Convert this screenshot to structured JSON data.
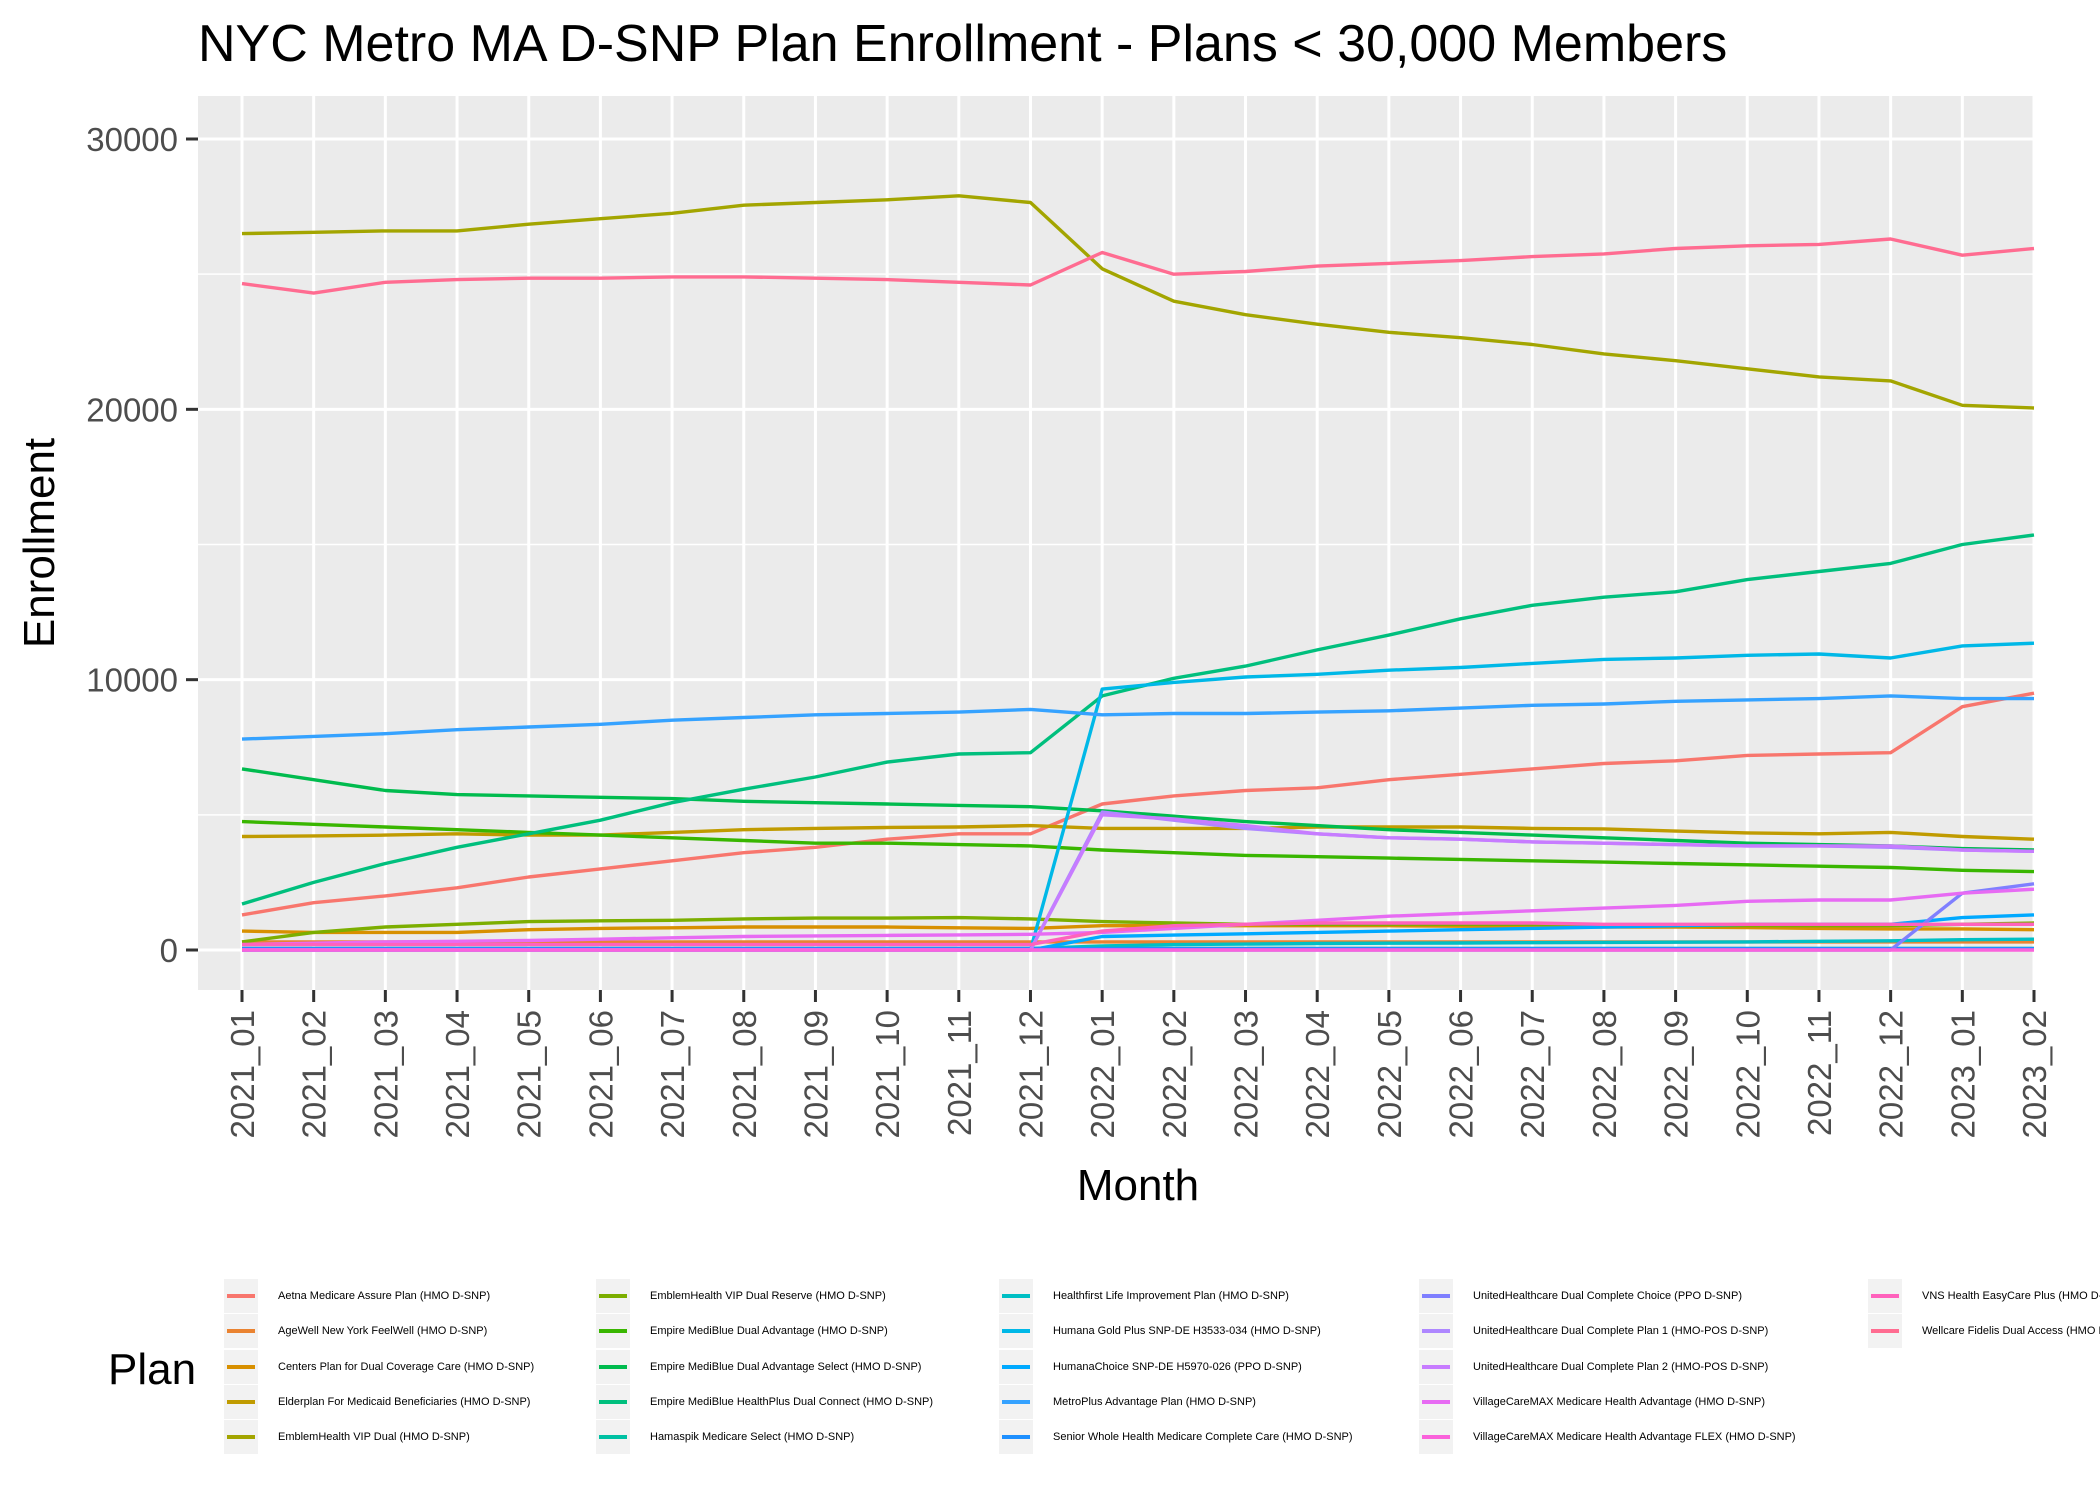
{
  "title": "NYC Metro MA D-SNP Plan Enrollment - Plans < 30,000 Members",
  "legend_title": "Plan",
  "chart_data": {
    "type": "line",
    "title": "NYC Metro MA D-SNP Plan Enrollment - Plans < 30,000 Members",
    "xlabel": "Month",
    "ylabel": "Enrollment",
    "ylim": [
      -1500,
      31500
    ],
    "yticks": [
      0,
      10000,
      20000,
      30000
    ],
    "grid": true,
    "legend_position": "bottom",
    "x": [
      "2021_01",
      "2021_02",
      "2021_03",
      "2021_04",
      "2021_05",
      "2021_06",
      "2021_07",
      "2021_08",
      "2021_09",
      "2021_10",
      "2021_11",
      "2021_12",
      "2022_01",
      "2022_02",
      "2022_03",
      "2022_04",
      "2022_05",
      "2022_06",
      "2022_07",
      "2022_08",
      "2022_09",
      "2022_10",
      "2022_11",
      "2022_12",
      "2023_01",
      "2023_02"
    ],
    "series": [
      {
        "name": "Aetna Medicare Assure Plan (HMO D-SNP)",
        "color": "#F8766D",
        "values": [
          1300,
          1750,
          2000,
          2300,
          2700,
          3000,
          3300,
          3600,
          3800,
          4100,
          4300,
          4300,
          5400,
          5700,
          5900,
          6000,
          6300,
          6500,
          6700,
          6900,
          7000,
          7200,
          7250,
          7300,
          9000,
          9500
        ]
      },
      {
        "name": "AgeWell New York FeelWell (HMO D-SNP)",
        "color": "#EA8331",
        "values": [
          300,
          300,
          300,
          300,
          300,
          300,
          300,
          300,
          300,
          300,
          300,
          300,
          300,
          300,
          300,
          300,
          300,
          300,
          300,
          300,
          300,
          300,
          300,
          300,
          300,
          300
        ]
      },
      {
        "name": "Centers Plan for Dual Coverage Care (HMO D-SNP)",
        "color": "#D89000",
        "values": [
          700,
          650,
          650,
          650,
          750,
          800,
          820,
          850,
          850,
          850,
          820,
          800,
          900,
          900,
          900,
          900,
          900,
          880,
          870,
          850,
          850,
          830,
          800,
          780,
          780,
          750
        ]
      },
      {
        "name": "Elderplan For Medicaid Beneficiaries (HMO D-SNP)",
        "color": "#C09B00",
        "values": [
          4200,
          4220,
          4250,
          4300,
          4250,
          4250,
          4350,
          4450,
          4500,
          4530,
          4550,
          4600,
          4500,
          4500,
          4500,
          4550,
          4550,
          4550,
          4500,
          4480,
          4400,
          4330,
          4300,
          4350,
          4200,
          4100
        ]
      },
      {
        "name": "EmblemHealth VIP Dual (HMO D-SNP)",
        "color": "#A3A500",
        "values": [
          26500,
          26550,
          26600,
          26600,
          26850,
          27050,
          27250,
          27550,
          27650,
          27750,
          27900,
          27650,
          25200,
          24000,
          23500,
          23150,
          22850,
          22650,
          22400,
          22050,
          21800,
          21500,
          21200,
          21050,
          20150,
          20050
        ]
      },
      {
        "name": "EmblemHealth VIP Dual Reserve (HMO D-SNP)",
        "color": "#7CAE00",
        "values": [
          300,
          650,
          850,
          950,
          1050,
          1080,
          1100,
          1150,
          1180,
          1180,
          1200,
          1150,
          1050,
          1000,
          950,
          950,
          950,
          950,
          950,
          920,
          900,
          900,
          900,
          900,
          950,
          1000
        ]
      },
      {
        "name": "Empire MediBlue Dual Advantage (HMO D-SNP)",
        "color": "#39B600",
        "values": [
          4750,
          4650,
          4550,
          4450,
          4350,
          4250,
          4150,
          4050,
          3950,
          3950,
          3900,
          3850,
          3700,
          3600,
          3500,
          3450,
          3400,
          3350,
          3300,
          3250,
          3200,
          3150,
          3100,
          3050,
          2950,
          2900
        ]
      },
      {
        "name": "Empire MediBlue Dual Advantage Select (HMO D-SNP)",
        "color": "#00BB4E",
        "values": [
          6700,
          6300,
          5900,
          5750,
          5700,
          5650,
          5600,
          5500,
          5450,
          5400,
          5350,
          5300,
          5150,
          4950,
          4750,
          4600,
          4450,
          4350,
          4250,
          4150,
          4050,
          3950,
          3900,
          3850,
          3750,
          3700
        ]
      },
      {
        "name": "Empire MediBlue HealthPlus Dual Connect (HMO D-SNP)",
        "color": "#00BF7D",
        "values": [
          1700,
          2500,
          3200,
          3800,
          4300,
          4800,
          5450,
          5950,
          6400,
          6950,
          7250,
          7300,
          9400,
          10050,
          10500,
          11100,
          11650,
          12250,
          12750,
          13050,
          13250,
          13700,
          14000,
          14300,
          15000,
          15350
        ]
      },
      {
        "name": "Hamaspik Medicare Select (HMO D-SNP)",
        "color": "#00C1A3",
        "values": [
          50,
          50,
          50,
          50,
          50,
          50,
          50,
          50,
          50,
          50,
          50,
          50,
          50,
          60,
          60,
          60,
          60,
          60,
          60,
          60,
          60,
          60,
          60,
          60,
          60,
          60
        ]
      },
      {
        "name": "Healthfirst Life Improvement Plan (HMO D-SNP)",
        "color": "#00BFC4",
        "values": [
          50,
          50,
          50,
          50,
          50,
          50,
          50,
          50,
          50,
          50,
          50,
          50,
          150,
          200,
          220,
          240,
          250,
          260,
          270,
          280,
          290,
          300,
          320,
          340,
          380,
          400
        ]
      },
      {
        "name": "Humana Gold Plus SNP-DE H3533-034 (HMO D-SNP)",
        "color": "#00B8E7",
        "values": [
          0,
          0,
          0,
          0,
          0,
          0,
          0,
          0,
          0,
          0,
          0,
          0,
          9650,
          9900,
          10100,
          10200,
          10350,
          10450,
          10600,
          10750,
          10800,
          10900,
          10950,
          10800,
          11250,
          11350
        ]
      },
      {
        "name": "HumanaChoice SNP-DE H5970-026 (PPO D-SNP)",
        "color": "#00A9FF",
        "values": [
          0,
          0,
          0,
          0,
          0,
          0,
          0,
          0,
          0,
          0,
          0,
          0,
          500,
          550,
          600,
          650,
          700,
          750,
          800,
          850,
          900,
          950,
          950,
          950,
          1200,
          1300
        ]
      },
      {
        "name": "MetroPlus Advantage Plan (HMO D-SNP)",
        "color": "#35A2FF",
        "values": [
          7800,
          7900,
          8000,
          8150,
          8250,
          8350,
          8500,
          8600,
          8700,
          8750,
          8800,
          8900,
          8700,
          8750,
          8750,
          8800,
          8850,
          8950,
          9050,
          9100,
          9200,
          9250,
          9300,
          9400,
          9300,
          9300
        ]
      },
      {
        "name": "Senior Whole Health Medicare Complete Care (HMO D-SNP)",
        "color": "#1E90FF",
        "values": [
          50,
          50,
          50,
          50,
          50,
          50,
          50,
          50,
          50,
          50,
          50,
          50,
          50,
          50,
          50,
          50,
          50,
          50,
          50,
          50,
          50,
          50,
          50,
          50,
          50,
          50
        ]
      },
      {
        "name": "UnitedHealthcare Dual Complete Choice (PPO D-SNP)",
        "color": "#7F7FFF",
        "values": [
          0,
          0,
          0,
          0,
          0,
          0,
          0,
          0,
          0,
          0,
          0,
          0,
          0,
          0,
          0,
          0,
          0,
          0,
          0,
          0,
          0,
          0,
          0,
          0,
          2100,
          2450
        ]
      },
      {
        "name": "UnitedHealthcare Dual Complete Plan 1 (HMO-POS D-SNP)",
        "color": "#AE87FF",
        "values": [
          0,
          0,
          0,
          0,
          0,
          0,
          0,
          0,
          0,
          0,
          0,
          0,
          5100,
          4800,
          4500,
          4300,
          4150,
          4100,
          4000,
          3950,
          3900,
          3850,
          3850,
          3800,
          3700,
          3650
        ]
      },
      {
        "name": "UnitedHealthcare Dual Complete Plan 2 (HMO-POS D-SNP)",
        "color": "#C77CFF",
        "values": [
          0,
          0,
          0,
          0,
          0,
          0,
          0,
          0,
          0,
          0,
          0,
          0,
          5000,
          4850,
          4600,
          4300,
          4150,
          4100,
          4000,
          3950,
          3900,
          3850,
          3850,
          3850,
          3700,
          3650
        ]
      },
      {
        "name": "VillageCareMAX Medicare Health Advantage (HMO D-SNP)",
        "color": "#E76BF3",
        "values": [
          200,
          250,
          300,
          320,
          350,
          400,
          450,
          500,
          520,
          540,
          560,
          580,
          650,
          800,
          950,
          1100,
          1250,
          1350,
          1450,
          1550,
          1650,
          1800,
          1850,
          1850,
          2100,
          2250
        ]
      },
      {
        "name": "VillageCareMAX Medicare Health Advantage FLEX (HMO D-SNP)",
        "color": "#FA62DB",
        "values": [
          0,
          0,
          0,
          0,
          0,
          0,
          0,
          0,
          0,
          0,
          0,
          0,
          0,
          0,
          0,
          0,
          0,
          0,
          0,
          0,
          0,
          0,
          0,
          0,
          0,
          0
        ]
      },
      {
        "name": "VNS Health EasyCare Plus (HMO D-SNP)",
        "color": "#FF62BC",
        "values": [
          200,
          200,
          200,
          200,
          200,
          200,
          200,
          200,
          200,
          200,
          200,
          200,
          700,
          900,
          950,
          1000,
          1000,
          1000,
          1000,
          950,
          950,
          950,
          950,
          950,
          950,
          950
        ]
      },
      {
        "name": "Wellcare Fidelis Dual Access (HMO D-SNP)",
        "color": "#FF6C91",
        "values": [
          24650,
          24300,
          24700,
          24800,
          24850,
          24850,
          24900,
          24900,
          24850,
          24800,
          24700,
          24600,
          25800,
          25000,
          25100,
          25300,
          25400,
          25500,
          25650,
          25750,
          25950,
          26050,
          26100,
          26300,
          25700,
          25950
        ]
      }
    ]
  }
}
